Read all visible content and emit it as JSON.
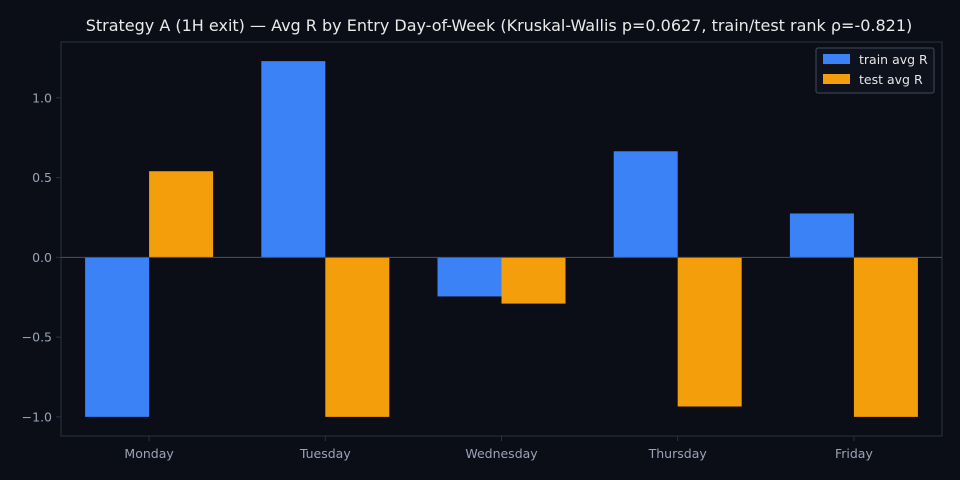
{
  "chart_data": {
    "type": "bar",
    "title": "Strategy A (1H exit) — Avg R by Entry Day-of-Week (Kruskal-Wallis p=0.0627, train/test rank ρ=-0.821)",
    "xlabel": "",
    "ylabel": "",
    "categories": [
      "Monday",
      "Tuesday",
      "Wednesday",
      "Thursday",
      "Friday"
    ],
    "series": [
      {
        "name": "train avg R",
        "color": "#3b82f6",
        "values": [
          -1.0,
          1.23,
          -0.245,
          0.665,
          0.275
        ]
      },
      {
        "name": "test avg R",
        "color": "#f59e0b",
        "values": [
          0.54,
          -1.0,
          -0.29,
          -0.935,
          -1.0
        ]
      }
    ],
    "ylim": [
      -1.12,
      1.35
    ],
    "yticks": [
      -1.0,
      -0.5,
      0.0,
      0.5,
      1.0
    ],
    "ytick_labels": [
      "−1.0",
      "−0.5",
      "0.0",
      "0.5",
      "1.0"
    ],
    "legend_position": "top-right",
    "grid": false,
    "background": "#0b0e17",
    "axes_color": "#2a3142"
  }
}
